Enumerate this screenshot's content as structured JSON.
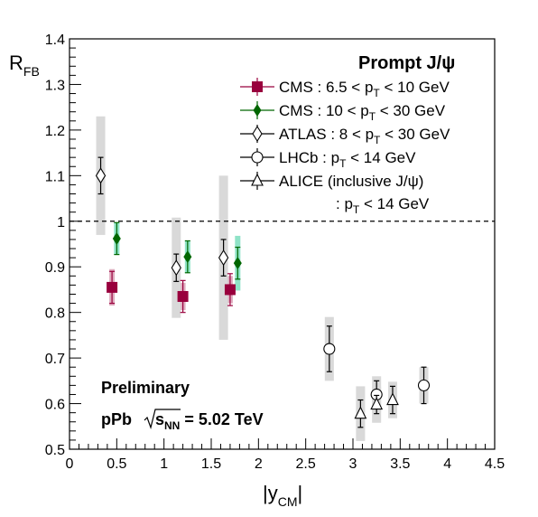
{
  "chart_data": {
    "type": "scatter",
    "xlabel": "|y",
    "xlabel_sub": "CM",
    "xlabel_suffix": "|",
    "ylabel": "R",
    "ylabel_sub": "FB",
    "xlim": [
      0,
      4.5
    ],
    "ylim": [
      0.5,
      1.4
    ],
    "xticks": [
      "0",
      "0.5",
      "1",
      "1.5",
      "2",
      "2.5",
      "3",
      "3.5",
      "4",
      "4.5"
    ],
    "yticks": [
      "0.5",
      "0.6",
      "0.7",
      "0.8",
      "0.9",
      "1",
      "1.1",
      "1.2",
      "1.3",
      "1.4"
    ],
    "reference_line": 1.0,
    "legend_title": "Prompt J/ψ",
    "annotations": {
      "preliminary": "Preliminary",
      "system": "pPb",
      "energy": "s",
      "energy_sub": "NN",
      "energy_suffix": " = 5.02 TeV"
    },
    "series": [
      {
        "name": "CMS : 6.5 < p_T < 10 GeV",
        "legend": {
          "pre": "CMS : 6.5 < p",
          "sub": "T",
          "post": " < 10 GeV"
        },
        "color": "#99003d",
        "marker": "filled-square",
        "syst_color": "#c46a8c",
        "points": [
          {
            "x": 0.45,
            "y": 0.855,
            "stat": 0.035,
            "sys": 0.04
          },
          {
            "x": 1.2,
            "y": 0.835,
            "stat": 0.035,
            "sys": 0.03
          },
          {
            "x": 1.7,
            "y": 0.85,
            "stat": 0.035,
            "sys": 0.03
          }
        ]
      },
      {
        "name": "CMS : 10 < p_T < 30 GeV",
        "legend": {
          "pre": "CMS : 10 < p",
          "sub": "T",
          "post": " < 30 GeV"
        },
        "color": "#006600",
        "marker": "filled-diamond",
        "syst_color": "#33cc99",
        "points": [
          {
            "x": 0.5,
            "y": 0.962,
            "stat": 0.035,
            "sys": 0.035
          },
          {
            "x": 1.25,
            "y": 0.922,
            "stat": 0.035,
            "sys": 0.035
          },
          {
            "x": 1.78,
            "y": 0.908,
            "stat": 0.035,
            "sys": 0.06
          }
        ]
      },
      {
        "name": "ATLAS : 8 < p_T < 30 GeV",
        "legend": {
          "pre": "ATLAS : 8 < p",
          "sub": "T",
          "post": " < 30 GeV"
        },
        "color": "#000000",
        "marker": "open-diamond",
        "syst_color": "#d9d9d9",
        "points": [
          {
            "x": 0.33,
            "y": 1.1,
            "stat": 0.04,
            "sys": 0.13
          },
          {
            "x": 1.13,
            "y": 0.898,
            "stat": 0.03,
            "sys": 0.11
          },
          {
            "x": 1.63,
            "y": 0.92,
            "stat": 0.04,
            "sys": 0.18
          }
        ]
      },
      {
        "name": "LHCb : p_T < 14 GeV",
        "legend": {
          "pre": "LHCb : p",
          "sub": "T",
          "post": " < 14 GeV"
        },
        "color": "#000000",
        "marker": "open-circle",
        "syst_color": "#d9d9d9",
        "points": [
          {
            "x": 2.75,
            "y": 0.72,
            "stat": 0.05,
            "sys": 0.07
          },
          {
            "x": 3.25,
            "y": 0.62,
            "stat": 0.03,
            "sys": 0.04
          },
          {
            "x": 3.75,
            "y": 0.64,
            "stat": 0.04,
            "sys": 0.04
          }
        ]
      },
      {
        "name": "ALICE (inclusive J/ψ) : p_T < 14 GeV",
        "legend": {
          "pre": "ALICE (inclusive  J/ψ)",
          "line2_pre": ": p",
          "sub": "T",
          "post": " < 14 GeV"
        },
        "color": "#000000",
        "marker": "open-triangle",
        "syst_color": "#d9d9d9",
        "points": [
          {
            "x": 3.08,
            "y": 0.578,
            "stat": 0.03,
            "sys": 0.06
          },
          {
            "x": 3.25,
            "y": 0.598,
            "stat": 0.02,
            "sys": 0.04
          },
          {
            "x": 3.42,
            "y": 0.608,
            "stat": 0.03,
            "sys": 0.04
          }
        ]
      }
    ]
  }
}
